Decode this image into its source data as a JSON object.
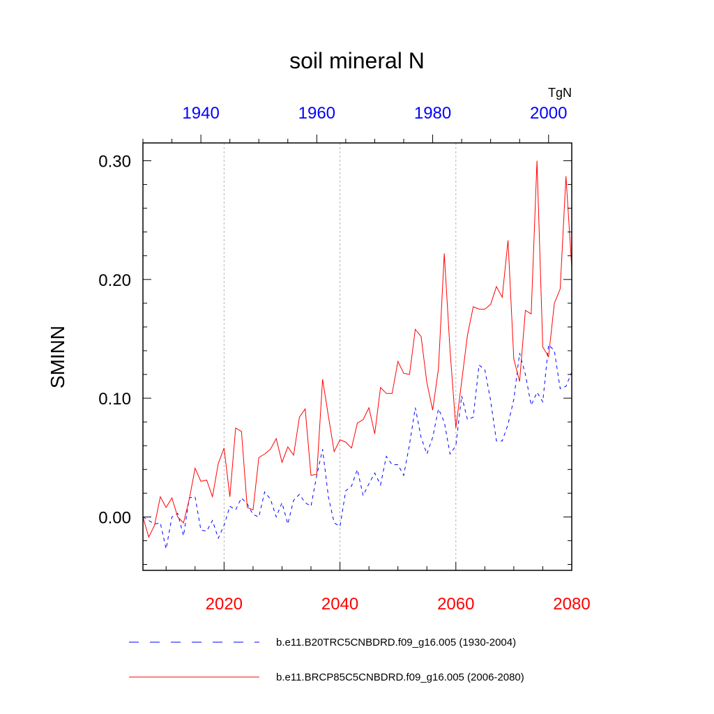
{
  "chart_data": {
    "type": "line",
    "title": "soil mineral N",
    "ylabel": "SMINN",
    "units": "TgN",
    "ylim": [
      -0.045,
      0.315
    ],
    "yticks": [
      0.0,
      0.1,
      0.2,
      0.3
    ],
    "ytick_labels": [
      "0.00",
      "0.10",
      "0.20",
      "0.30"
    ],
    "bottom_axis": {
      "range": [
        2006,
        2080
      ],
      "ticks": [
        2020,
        2040,
        2060,
        2080
      ],
      "tick_labels": [
        "2020",
        "2040",
        "2060",
        "2080"
      ],
      "color": "#ff0000"
    },
    "top_axis": {
      "range": [
        1930,
        2004
      ],
      "ticks": [
        1940,
        1960,
        1980,
        2000
      ],
      "tick_labels": [
        "1940",
        "1960",
        "1980",
        "2000"
      ],
      "color": "#0000ff"
    },
    "series": [
      {
        "name": "b.e11.B20TRC5CNBDRD.f09_g16.005 (1930-2004)",
        "axis": "top",
        "color": "#0000ff",
        "dash": "dashed",
        "x": [
          1930,
          1931,
          1932,
          1933,
          1934,
          1935,
          1936,
          1937,
          1938,
          1939,
          1940,
          1941,
          1942,
          1943,
          1944,
          1945,
          1946,
          1947,
          1948,
          1949,
          1950,
          1951,
          1952,
          1953,
          1954,
          1955,
          1956,
          1957,
          1958,
          1959,
          1960,
          1961,
          1962,
          1963,
          1964,
          1965,
          1966,
          1967,
          1968,
          1969,
          1970,
          1971,
          1972,
          1973,
          1974,
          1975,
          1976,
          1977,
          1978,
          1979,
          1980,
          1981,
          1982,
          1983,
          1984,
          1985,
          1986,
          1987,
          1988,
          1989,
          1990,
          1991,
          1992,
          1993,
          1994,
          1995,
          1996,
          1997,
          1998,
          1999,
          2000,
          2001,
          2002,
          2003,
          2004
        ],
        "values": [
          0.0,
          -0.003,
          -0.006,
          -0.005,
          -0.027,
          0.0,
          0.003,
          -0.016,
          0.016,
          0.017,
          -0.011,
          -0.012,
          -0.003,
          -0.018,
          -0.007,
          0.009,
          0.006,
          0.016,
          0.011,
          0.002,
          0.0,
          0.021,
          0.015,
          0.0,
          0.012,
          -0.006,
          0.014,
          0.019,
          0.012,
          0.009,
          0.035,
          0.057,
          0.017,
          -0.005,
          -0.008,
          0.022,
          0.026,
          0.04,
          0.018,
          0.028,
          0.037,
          0.027,
          0.051,
          0.044,
          0.044,
          0.035,
          0.061,
          0.092,
          0.067,
          0.053,
          0.067,
          0.091,
          0.08,
          0.053,
          0.06,
          0.102,
          0.082,
          0.084,
          0.128,
          0.124,
          0.098,
          0.064,
          0.064,
          0.078,
          0.099,
          0.138,
          0.12,
          0.094,
          0.105,
          0.097,
          0.145,
          0.14,
          0.108,
          0.11,
          0.122
        ]
      },
      {
        "name": "b.e11.BRCP85C5CNBDRD.f09_g16.005 (2006-2080)",
        "axis": "bottom",
        "color": "#ff0000",
        "dash": "solid",
        "x": [
          2006,
          2007,
          2008,
          2009,
          2010,
          2011,
          2012,
          2013,
          2014,
          2015,
          2016,
          2017,
          2018,
          2019,
          2020,
          2021,
          2022,
          2023,
          2024,
          2025,
          2026,
          2027,
          2028,
          2029,
          2030,
          2031,
          2032,
          2033,
          2034,
          2035,
          2036,
          2037,
          2038,
          2039,
          2040,
          2041,
          2042,
          2043,
          2044,
          2045,
          2046,
          2047,
          2048,
          2049,
          2050,
          2051,
          2052,
          2053,
          2054,
          2055,
          2056,
          2057,
          2058,
          2059,
          2060,
          2061,
          2062,
          2063,
          2064,
          2065,
          2066,
          2067,
          2068,
          2069,
          2070,
          2071,
          2072,
          2073,
          2074,
          2075,
          2076,
          2077,
          2078,
          2079,
          2080
        ],
        "values": [
          0.0,
          -0.017,
          -0.007,
          0.017,
          0.008,
          0.016,
          0.0,
          -0.005,
          0.015,
          0.041,
          0.03,
          0.031,
          0.017,
          0.045,
          0.058,
          0.017,
          0.075,
          0.072,
          0.008,
          0.006,
          0.05,
          0.053,
          0.057,
          0.066,
          0.046,
          0.059,
          0.052,
          0.084,
          0.091,
          0.035,
          0.036,
          0.116,
          0.085,
          0.055,
          0.065,
          0.063,
          0.058,
          0.079,
          0.082,
          0.092,
          0.07,
          0.109,
          0.104,
          0.104,
          0.131,
          0.121,
          0.12,
          0.158,
          0.152,
          0.113,
          0.09,
          0.125,
          0.222,
          0.14,
          0.075,
          0.114,
          0.153,
          0.177,
          0.175,
          0.175,
          0.179,
          0.194,
          0.185,
          0.233,
          0.133,
          0.114,
          0.174,
          0.171,
          0.3,
          0.143,
          0.135,
          0.18,
          0.192,
          0.287,
          0.21
        ]
      }
    ]
  }
}
